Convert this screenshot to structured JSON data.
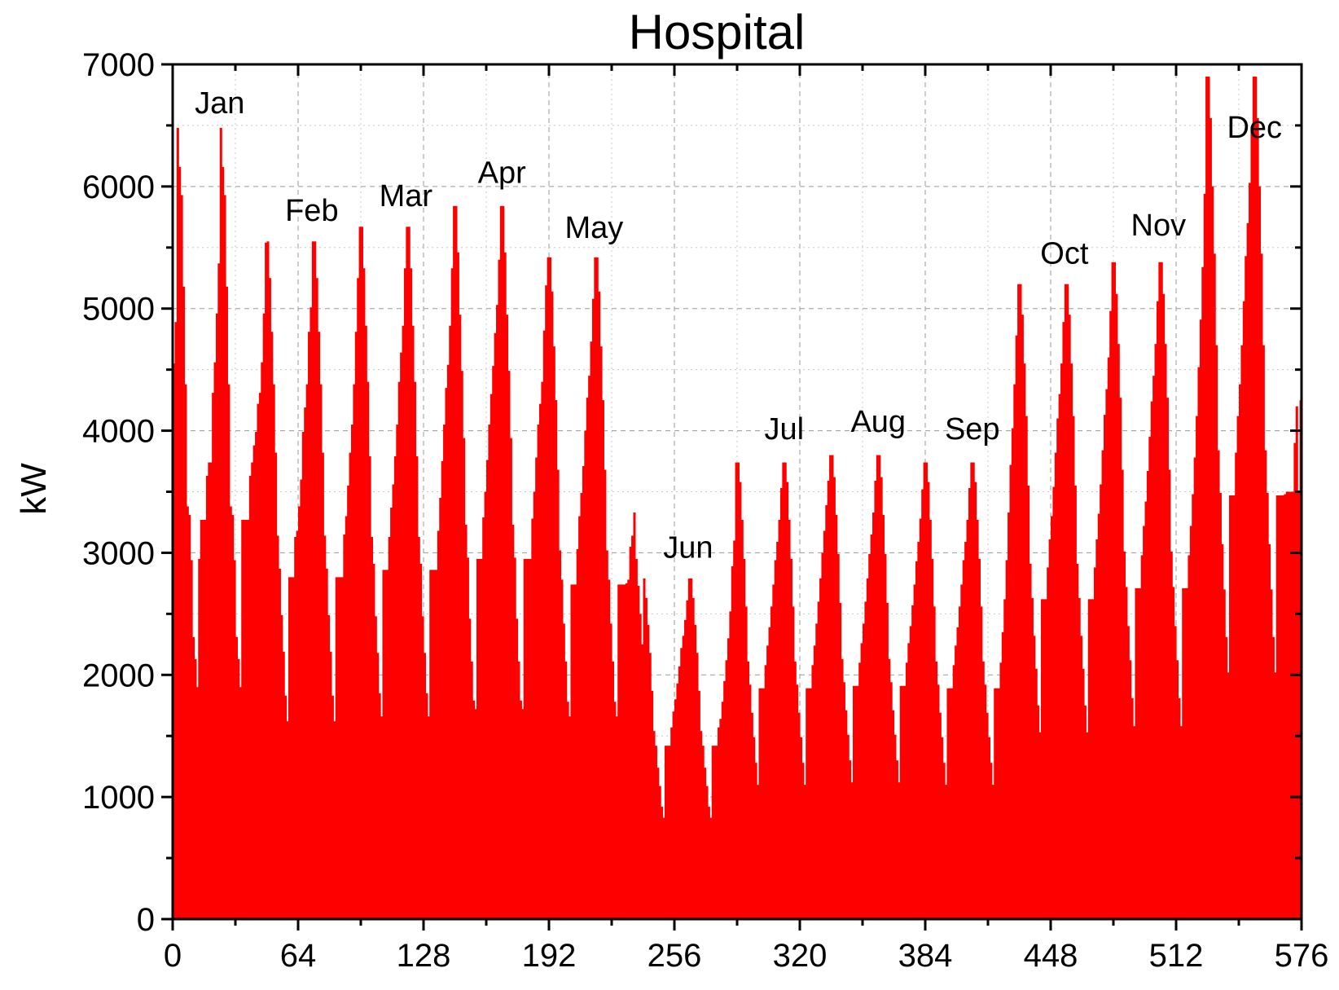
{
  "chart_data": {
    "type": "bar",
    "title": "Hospital",
    "xlabel": "",
    "ylabel": "kW",
    "xlim": [
      0,
      576
    ],
    "ylim": [
      0,
      7000
    ],
    "xticks": [
      0,
      64,
      128,
      192,
      256,
      320,
      384,
      448,
      512,
      576
    ],
    "yticks": [
      0,
      1000,
      2000,
      3000,
      4000,
      5000,
      6000,
      7000
    ],
    "grid": true,
    "color": "#ff0000",
    "series": [
      {
        "note_resolution": "hourly (24 values per typical day); 2 typical days per month",
        "monthly_profiles": [
          {
            "month": "Jan",
            "day1": [
              4550,
              4890,
              6480,
              6160,
              5930,
              5180,
              4380,
              3380,
              3310,
              2940,
              2310,
              2130,
              1900,
              2950,
              3270,
              3270,
              3270,
              3630,
              3740,
              3740,
              4310,
              4560,
              4960,
              5370
            ],
            "day2": [
              6480,
              6160,
              5930,
              5180,
              4380,
              3380,
              3310,
              2940,
              2310,
              2130,
              1900,
              3270,
              3270,
              3270,
              3270,
              3630,
              3740,
              3880,
              3990,
              4220,
              4310,
              4560,
              4960,
              5540
            ]
          },
          {
            "month": "Feb",
            "day1": [
              5550,
              5250,
              4810,
              4380,
              3820,
              3140,
              2870,
              2490,
              2190,
              1830,
              1620,
              2800,
              2800,
              2800,
              3130,
              3180,
              3380,
              3600,
              3990,
              4190,
              4380,
              4810,
              5010,
              5550
            ],
            "day2": [
              5550,
              5250,
              4810,
              4380,
              3820,
              3140,
              2870,
              2490,
              2190,
              1830,
              1620,
              2800,
              2800,
              2800,
              2800,
              3150,
              3300,
              3550,
              3820,
              4050,
              4380,
              4810,
              5250,
              5670
            ]
          },
          {
            "month": "Mar",
            "day1": [
              5670,
              5330,
              4860,
              4400,
              3790,
              3130,
              2910,
              2480,
              2180,
              1850,
              1660,
              2860,
              2860,
              2860,
              3130,
              3370,
              3560,
              3790,
              4050,
              4400,
              4640,
              4860,
              5330,
              5670
            ],
            "day2": [
              5670,
              5330,
              4860,
              4400,
              3790,
              3130,
              2910,
              2480,
              2180,
              1850,
              1660,
              2860,
              2860,
              2860,
              2860,
              3180,
              3450,
              3750,
              4050,
              4350,
              4540,
              4860,
              5330,
              5840
            ]
          },
          {
            "month": "Apr",
            "day1": [
              5840,
              5460,
              4950,
              4490,
              3940,
              3230,
              2960,
              2460,
              2110,
              1790,
              1720,
              2950,
              2950,
              2950,
              3290,
              3500,
              3760,
              4050,
              4300,
              4530,
              4800,
              5030,
              5400,
              5840
            ],
            "day2": [
              5840,
              5460,
              4950,
              4490,
              3940,
              3230,
              2960,
              2460,
              2110,
              1790,
              1720,
              2950,
              2950,
              2950,
              2950,
              3280,
              3500,
              3780,
              4050,
              4220,
              4400,
              4820,
              5190,
              5420
            ]
          },
          {
            "month": "May",
            "day1": [
              5420,
              5140,
              4690,
              4250,
              3680,
              3020,
              2780,
              2420,
              2110,
              1780,
              1660,
              2740,
              2740,
              2740,
              3030,
              3300,
              3490,
              3710,
              4000,
              4270,
              4450,
              4730,
              5080,
              5420
            ],
            "day2": [
              5420,
              5140,
              4690,
              4250,
              3680,
              3020,
              2780,
              2420,
              2110,
              1780,
              1660,
              2740,
              2740,
              2740,
              2740,
              2750,
              2780,
              3050,
              3140,
              3330,
              2950,
              2730,
              2500,
              2250
            ]
          },
          {
            "month": "Jun",
            "day1": [
              2790,
              2630,
              2410,
              2180,
              1870,
              1540,
              1420,
              1240,
              1090,
              920,
              830,
              1420,
              1420,
              1420,
              1570,
              1700,
              1800,
              1930,
              2070,
              2220,
              2320,
              2450,
              2610,
              2790
            ],
            "day2": [
              2790,
              2630,
              2410,
              2180,
              1870,
              1540,
              1420,
              1240,
              1090,
              920,
              830,
              1420,
              1420,
              1420,
              1570,
              1640,
              1780,
              1950,
              2120,
              2300,
              2520,
              2890,
              3100,
              3740
            ]
          },
          {
            "month": "Jul",
            "day1": [
              3740,
              3580,
              3270,
              2950,
              2560,
              2110,
              1920,
              1690,
              1490,
              1280,
              1100,
              1890,
              1890,
              1890,
              2080,
              2240,
              2390,
              2560,
              2740,
              2940,
              3090,
              3270,
              3530,
              3740
            ],
            "day2": [
              3740,
              3580,
              3270,
              2950,
              2560,
              2110,
              1920,
              1690,
              1490,
              1280,
              1100,
              1890,
              1890,
              1890,
              2080,
              2240,
              2420,
              2600,
              2790,
              3000,
              3180,
              3390,
              3590,
              3800
            ]
          },
          {
            "month": "Aug",
            "day1": [
              3800,
              3620,
              3310,
              2990,
              2590,
              2130,
              1940,
              1710,
              1510,
              1300,
              1120,
              1910,
              1910,
              1910,
              2100,
              2260,
              2420,
              2600,
              2790,
              2990,
              3150,
              3330,
              3590,
              3800
            ],
            "day2": [
              3800,
              3620,
              3310,
              2990,
              2590,
              2130,
              1940,
              1710,
              1510,
              1300,
              1120,
              1910,
              1910,
              1910,
              2100,
              2260,
              2400,
              2570,
              2740,
              2930,
              3090,
              3280,
              3520,
              3740
            ]
          },
          {
            "month": "Sep",
            "day1": [
              3740,
              3580,
              3270,
              2950,
              2560,
              2110,
              1920,
              1690,
              1490,
              1280,
              1100,
              1890,
              1890,
              1890,
              2080,
              2240,
              2390,
              2560,
              2740,
              2940,
              3090,
              3270,
              3530,
              3740
            ],
            "day2": [
              3740,
              3580,
              3270,
              2950,
              2560,
              2110,
              1920,
              1690,
              1490,
              1280,
              1100,
              1890,
              1890,
              1890,
              2100,
              2350,
              2620,
              2940,
              3330,
              3720,
              4020,
              4380,
              4780,
              5200
            ]
          },
          {
            "month": "Oct",
            "day1": [
              5200,
              4950,
              4550,
              4120,
              3550,
              2910,
              2630,
              2320,
              2050,
              1750,
              1530,
              2620,
              2620,
              2620,
              2880,
              3110,
              3300,
              3540,
              3820,
              4100,
              4300,
              4550,
              4890,
              5200
            ],
            "day2": [
              5200,
              4950,
              4550,
              4120,
              3550,
              2910,
              2630,
              2320,
              2050,
              1750,
              1530,
              2620,
              2620,
              2620,
              2880,
              3110,
              3320,
              3560,
              3840,
              4130,
              4340,
              4600,
              4980,
              5380
            ]
          },
          {
            "month": "Nov",
            "day1": [
              5380,
              5120,
              4710,
              4270,
              3680,
              3010,
              2720,
              2400,
              2120,
              1810,
              1580,
              2710,
              2710,
              2710,
              2980,
              3220,
              3420,
              3670,
              3950,
              4240,
              4450,
              4710,
              5060,
              5380
            ],
            "day2": [
              5380,
              5120,
              4710,
              4270,
              3680,
              3010,
              2720,
              2400,
              2120,
              1810,
              1580,
              2710,
              2710,
              2710,
              2980,
              3220,
              3480,
              3780,
              4120,
              4520,
              4910,
              5340,
              5940,
              6900
            ]
          },
          {
            "month": "Dec",
            "day1": [
              6900,
              6560,
              6000,
              5450,
              4700,
              3840,
              3490,
              3070,
              2700,
              2310,
              2020,
              3470,
              3470,
              3470,
              3820,
              4120,
              4380,
              4700,
              5060,
              5430,
              5700,
              6030,
              6490,
              6900
            ],
            "day2": [
              6900,
              6560,
              6000,
              5450,
              4700,
              3840,
              3490,
              3070,
              2700,
              2310,
              2020,
              3470,
              3470,
              3470,
              3470,
              3480,
              3500,
              3500,
              3500,
              3500,
              3900,
              4200,
              3510,
              4250
            ]
          }
        ]
      }
    ],
    "annotations": [
      {
        "text": "Jan",
        "x": 24,
        "y": 6600
      },
      {
        "text": "Feb",
        "x": 71,
        "y": 5720
      },
      {
        "text": "Mar",
        "x": 119,
        "y": 5840
      },
      {
        "text": "Apr",
        "x": 168,
        "y": 6030
      },
      {
        "text": "May",
        "x": 215,
        "y": 5580
      },
      {
        "text": "Jun",
        "x": 263,
        "y": 2960
      },
      {
        "text": "Jul",
        "x": 312,
        "y": 3930
      },
      {
        "text": "Aug",
        "x": 360,
        "y": 3990
      },
      {
        "text": "Sep",
        "x": 408,
        "y": 3930
      },
      {
        "text": "Oct",
        "x": 455,
        "y": 5370
      },
      {
        "text": "Nov",
        "x": 503,
        "y": 5600
      },
      {
        "text": "Dec",
        "x": 552,
        "y": 6400
      }
    ]
  }
}
